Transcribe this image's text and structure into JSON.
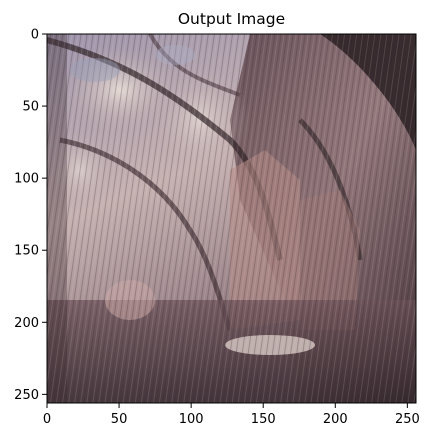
{
  "chart_data": {
    "type": "image",
    "title": "Output Image",
    "xlabel": "",
    "ylabel": "",
    "image_shape": [
      256,
      256
    ],
    "xlim": [
      0,
      256
    ],
    "ylim": [
      256,
      0
    ],
    "x_ticks": [
      0,
      50,
      100,
      150,
      200,
      250
    ],
    "y_ticks": [
      0,
      50,
      100,
      150,
      200,
      250
    ],
    "x_tick_labels": [
      "0",
      "50",
      "100",
      "150",
      "200",
      "250"
    ],
    "y_tick_labels": [
      "0",
      "50",
      "100",
      "150",
      "200",
      "250"
    ],
    "grid": false,
    "content_description_colors": [
      "#c9a9a8",
      "#8a6f74",
      "#3a2a30",
      "#d8c2bb",
      "#6f5a66",
      "#9aa0b8"
    ]
  }
}
